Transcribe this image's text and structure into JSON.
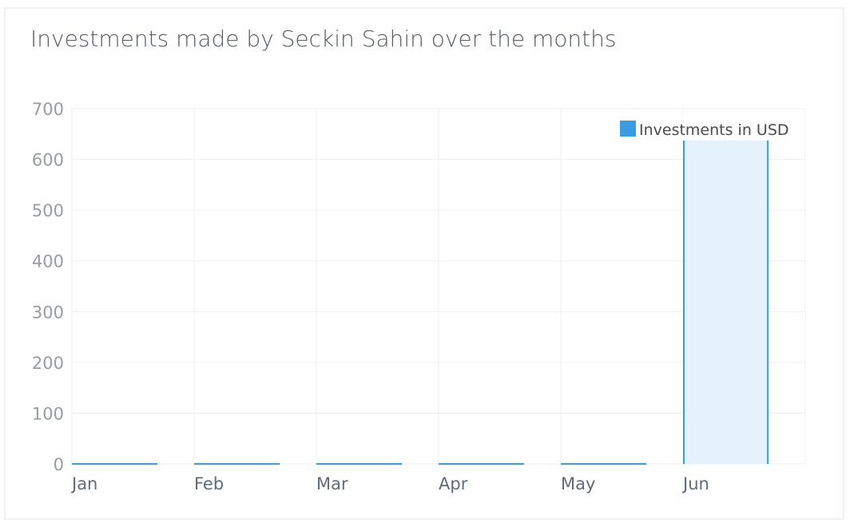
{
  "chart_data": {
    "type": "bar",
    "title": "Investments made by Seckin Sahin over the months",
    "xlabel": "",
    "ylabel": "",
    "categories": [
      "Jan",
      "Feb",
      "Mar",
      "Apr",
      "May",
      "Jun"
    ],
    "series": [
      {
        "name": "Investments in USD",
        "values": [
          0,
          0,
          0,
          0,
          0,
          650
        ]
      }
    ],
    "ylim": [
      0,
      700
    ],
    "yticks": [
      0,
      100,
      200,
      300,
      400,
      500,
      600,
      700
    ],
    "grid": true,
    "legend_position": "top-right",
    "colors": {
      "bar_fill": "#e6f2fb",
      "bar_stroke": "#3a9de3",
      "legend_swatch": "#3a9de3",
      "grid": "#efefef",
      "title": "#555a60"
    }
  }
}
